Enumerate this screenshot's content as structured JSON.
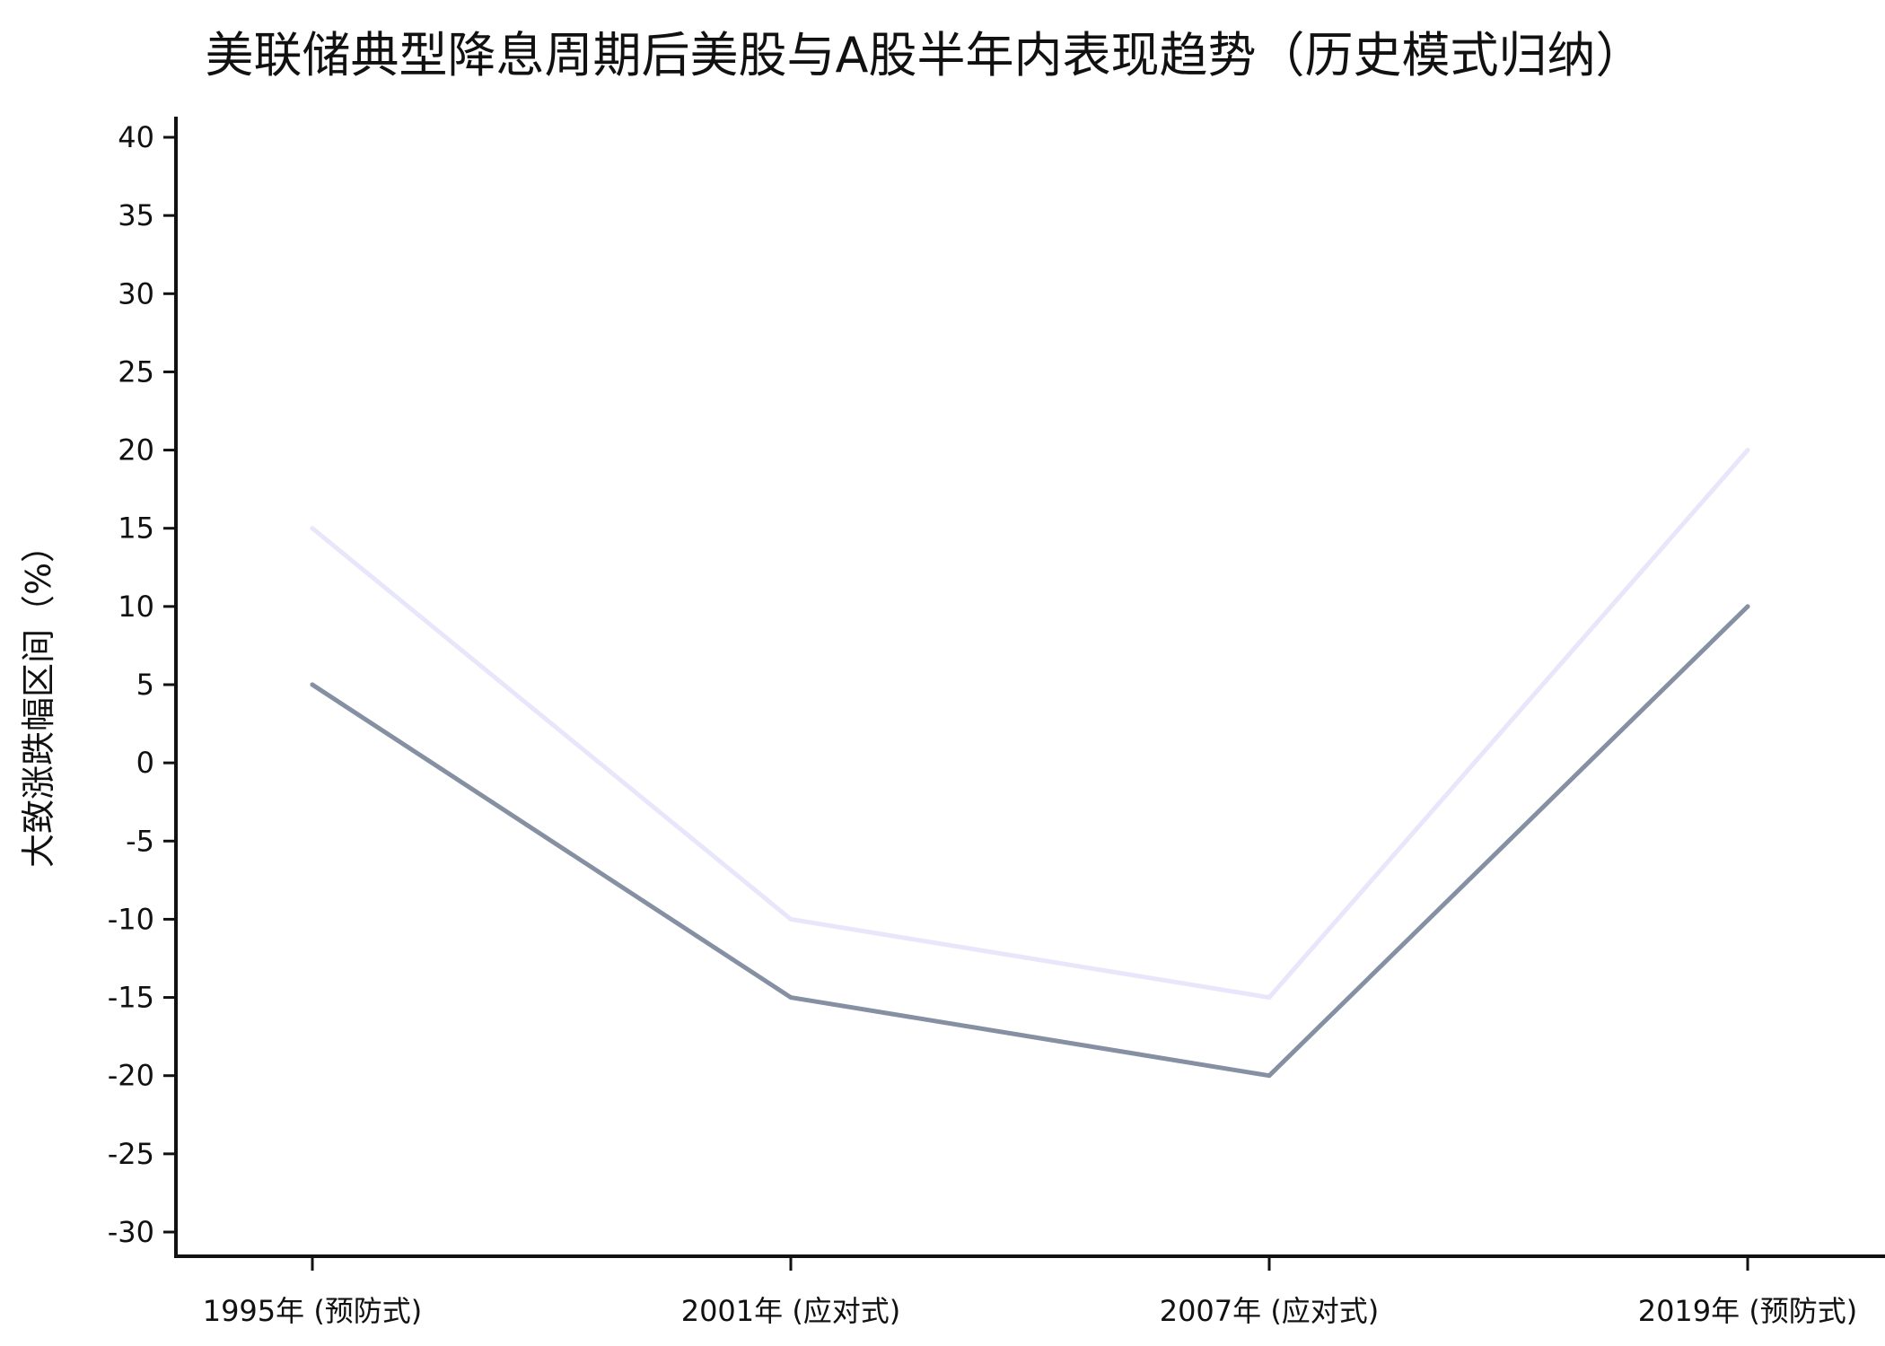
{
  "chart_data": {
    "type": "line",
    "title": "美联储典型降息周期后美股与A股半年内表现趋势（历史模式归纳）",
    "xlabel": "",
    "ylabel": "大致涨跌幅区间（%）",
    "categories": [
      "1995年 (预防式)",
      "2001年 (应对式)",
      "2007年 (应对式)",
      "2019年 (预防式)"
    ],
    "ylim": [
      -30,
      40
    ],
    "yticks": [
      40,
      35,
      30,
      25,
      20,
      15,
      10,
      5,
      0,
      -5,
      -10,
      -15,
      -20,
      -25,
      -30
    ],
    "grid": false,
    "legend": "none",
    "series": [
      {
        "values": [
          15,
          -10,
          -15,
          20
        ],
        "color": "#e8e6fa"
      },
      {
        "values": [
          5,
          -15,
          -20,
          10
        ],
        "color": "#8590a3"
      }
    ]
  }
}
